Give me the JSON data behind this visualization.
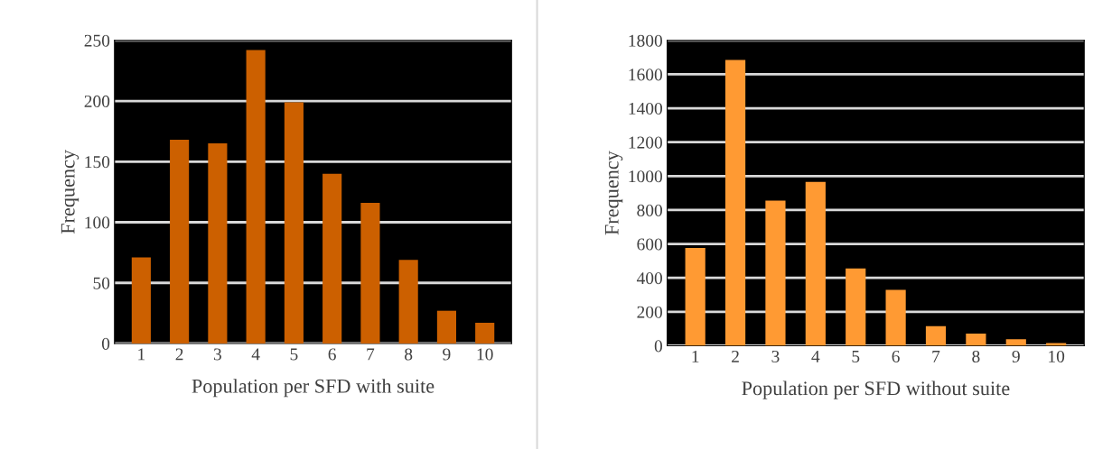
{
  "chart_data": [
    {
      "type": "bar",
      "xlabel": "Population per SFD with suite",
      "ylabel": "Frequency",
      "categories": [
        "1",
        "2",
        "3",
        "4",
        "5",
        "6",
        "7",
        "8",
        "9",
        "10"
      ],
      "values": [
        71,
        168,
        165,
        242,
        199,
        140,
        116,
        69,
        27,
        17
      ],
      "color": "#cc6000",
      "ylim": [
        0,
        250
      ],
      "yticks": [
        0,
        50,
        100,
        150,
        200,
        250
      ],
      "grid": "y",
      "legend": false
    },
    {
      "type": "bar",
      "xlabel": "Population per SFD without suite",
      "ylabel": "Frequency",
      "categories": [
        "1",
        "2",
        "3",
        "4",
        "5",
        "6",
        "7",
        "8",
        "9",
        "10"
      ],
      "values": [
        576,
        1685,
        856,
        966,
        455,
        330,
        115,
        71,
        38,
        16
      ],
      "color": "#ff9a33",
      "ylim": [
        0,
        1800
      ],
      "yticks": [
        0,
        200,
        400,
        600,
        800,
        1000,
        1200,
        1400,
        1600,
        1800
      ],
      "grid": "y",
      "legend": false
    }
  ]
}
